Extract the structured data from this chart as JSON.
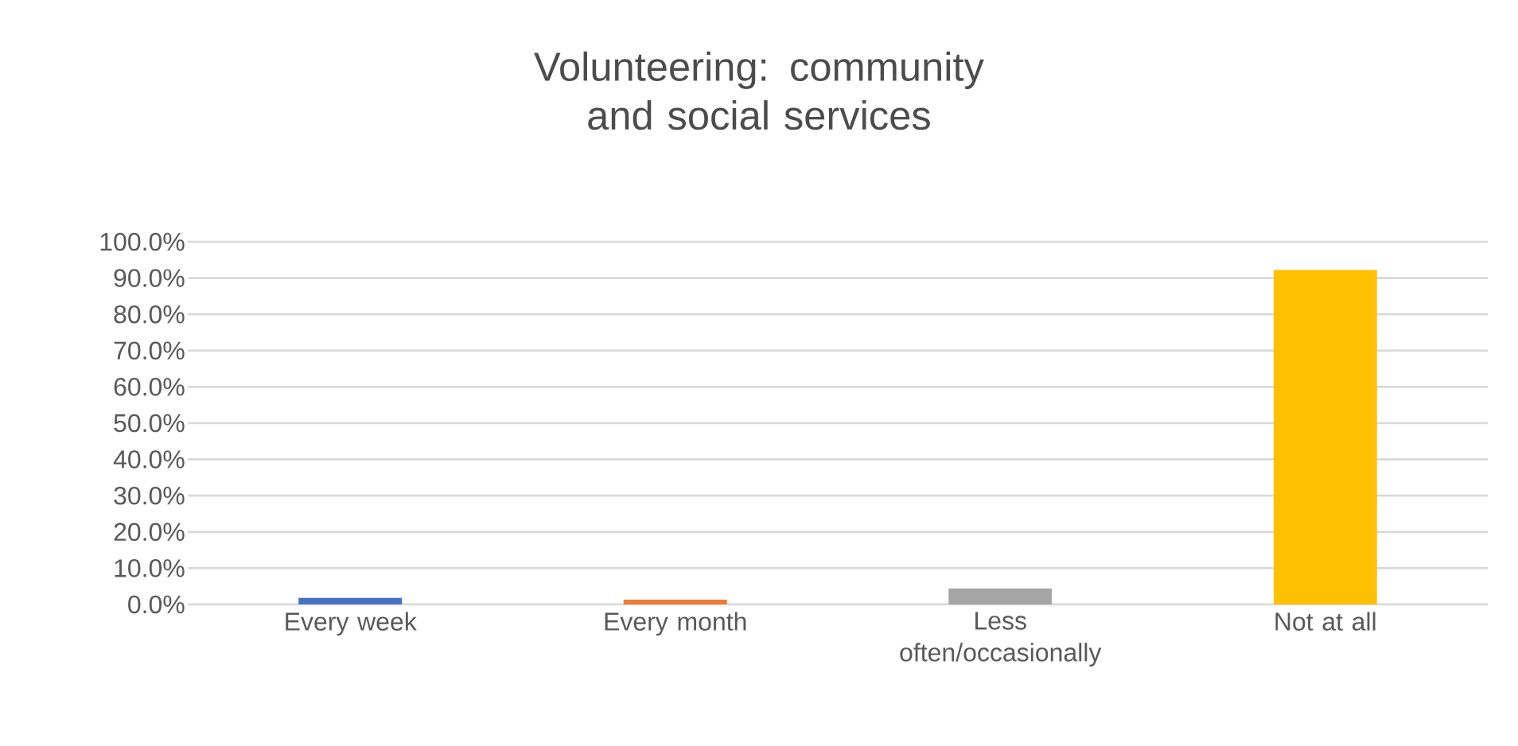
{
  "chart_data": {
    "type": "bar",
    "title": "Volunteering: community and social services",
    "categories": [
      "Every week",
      "Every month",
      "Less often/occasionally",
      "Not at all"
    ],
    "values": [
      1.8,
      1.3,
      4.4,
      92.2
    ],
    "colors": [
      "#4472c4",
      "#ed7d31",
      "#a5a5a5",
      "#ffc000"
    ],
    "ylim": [
      0,
      100
    ],
    "yticks": [
      {
        "value": 0,
        "label": "0.0%"
      },
      {
        "value": 10,
        "label": "10.0%"
      },
      {
        "value": 20,
        "label": "20.0%"
      },
      {
        "value": 30,
        "label": "30.0%"
      },
      {
        "value": 40,
        "label": "40.0%"
      },
      {
        "value": 50,
        "label": "50.0%"
      },
      {
        "value": 60,
        "label": "60.0%"
      },
      {
        "value": 70,
        "label": "70.0%"
      },
      {
        "value": 80,
        "label": "80.0%"
      },
      {
        "value": 90,
        "label": "90.0%"
      },
      {
        "value": 100,
        "label": "100.0%"
      }
    ],
    "grid": "y"
  }
}
